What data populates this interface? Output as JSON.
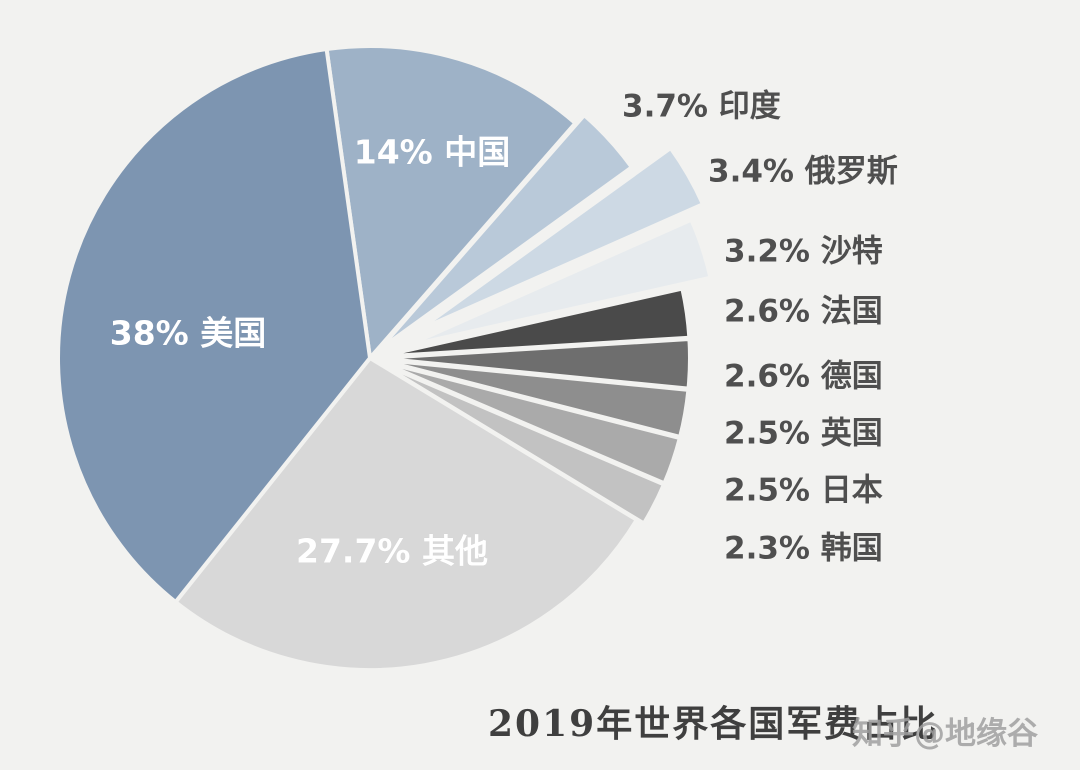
{
  "chart_data": {
    "type": "pie",
    "title": "2019年世界各国军费占比",
    "watermark": "知乎@地缘谷",
    "unit": "%",
    "start_angle_deg": -8,
    "background_color": "#f2f2f0",
    "slices": [
      {
        "key": "china",
        "name": "中国",
        "value": 14,
        "label": "14% 中国",
        "color": "#9eb2c7",
        "explode": 0,
        "label_pos": "inside"
      },
      {
        "key": "india",
        "name": "印度",
        "value": 3.7,
        "label": "3.7% 印度",
        "color": "#b9c9d9",
        "explode": 12,
        "label_pos": "outside"
      },
      {
        "key": "russia",
        "name": "俄罗斯",
        "value": 3.4,
        "label": "3.4% 俄罗斯",
        "color": "#cdd9e4",
        "explode": 55,
        "label_pos": "outside"
      },
      {
        "key": "saudi",
        "name": "沙特",
        "value": 3.2,
        "label": "3.2% 沙特",
        "color": "#e7ebee",
        "explode": 38,
        "label_pos": "outside"
      },
      {
        "key": "france",
        "name": "法国",
        "value": 2.6,
        "label": "2.6% 法国",
        "color": "#4a4a4a",
        "explode": 8,
        "label_pos": "outside"
      },
      {
        "key": "germany",
        "name": "德国",
        "value": 2.6,
        "label": "2.6% 德国",
        "color": "#6e6e6e",
        "explode": 8,
        "label_pos": "outside"
      },
      {
        "key": "uk",
        "name": "英国",
        "value": 2.5,
        "label": "2.5% 英国",
        "color": "#8e8e8e",
        "explode": 8,
        "label_pos": "outside"
      },
      {
        "key": "japan",
        "name": "日本",
        "value": 2.5,
        "label": "2.5% 日本",
        "color": "#aaaaaa",
        "explode": 8,
        "label_pos": "outside"
      },
      {
        "key": "korea",
        "name": "韩国",
        "value": 2.3,
        "label": "2.3% 韩国",
        "color": "#c2c2c2",
        "explode": 8,
        "label_pos": "outside"
      },
      {
        "key": "other",
        "name": "其他",
        "value": 27.7,
        "label": "27.7% 其他",
        "color": "#d8d8d8",
        "explode": 0,
        "label_pos": "inside"
      },
      {
        "key": "usa",
        "name": "美国",
        "value": 38,
        "label": "38% 美国",
        "color": "#7d95b1",
        "explode": 0,
        "label_pos": "inside"
      }
    ]
  }
}
